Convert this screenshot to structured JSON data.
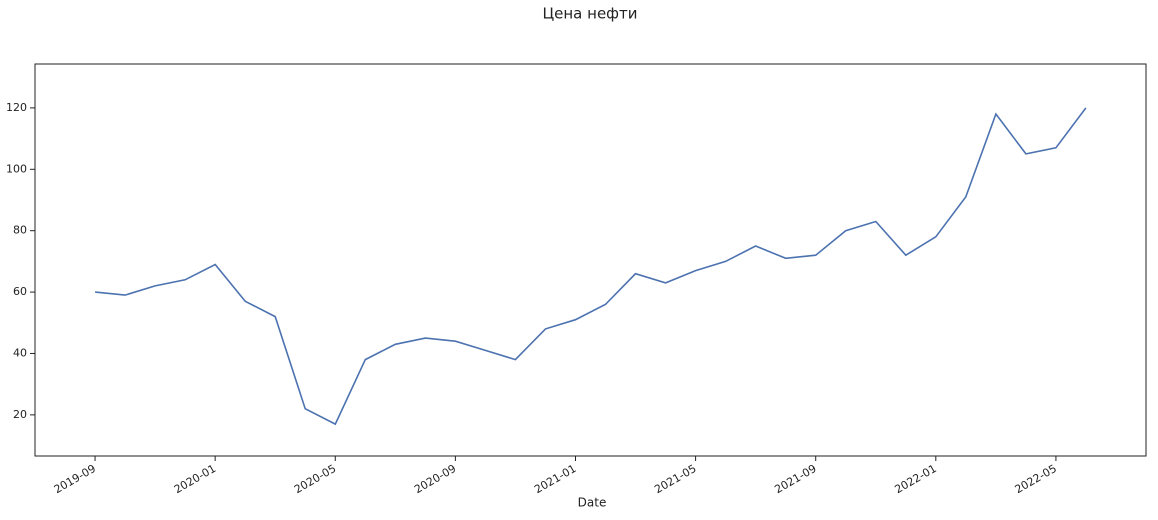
{
  "chart_data": {
    "type": "line",
    "title": "Цена нефти",
    "xlabel": "Date",
    "x": [
      "2019-09",
      "2019-10",
      "2019-11",
      "2019-12",
      "2020-01",
      "2020-02",
      "2020-03",
      "2020-04",
      "2020-05",
      "2020-06",
      "2020-07",
      "2020-08",
      "2020-09",
      "2020-10",
      "2020-11",
      "2020-12",
      "2021-01",
      "2021-02",
      "2021-03",
      "2021-04",
      "2021-05",
      "2021-06",
      "2021-07",
      "2021-08",
      "2021-09",
      "2021-10",
      "2021-11",
      "2021-12",
      "2022-01",
      "2022-02",
      "2022-03",
      "2022-04",
      "2022-05",
      "2022-06"
    ],
    "series": [
      {
        "color": "#4c72b0",
        "values": [
          60,
          59,
          62,
          64,
          69,
          57,
          52,
          22,
          17,
          38,
          43,
          45,
          44,
          41,
          38,
          48,
          51,
          56,
          66,
          63,
          67,
          70,
          75,
          71,
          72,
          80,
          83,
          72,
          78,
          91,
          118,
          105,
          107,
          120
        ]
      }
    ],
    "xlim": [
      "2019-07",
      "2022-08"
    ],
    "xticks": [
      "2019-09",
      "2020-01",
      "2020-05",
      "2020-09",
      "2021-01",
      "2021-05",
      "2021-09",
      "2022-01",
      "2022-05"
    ],
    "ylim": [
      6.6,
      134.3
    ],
    "yticks": [
      20,
      40,
      60,
      80,
      100,
      120
    ]
  }
}
